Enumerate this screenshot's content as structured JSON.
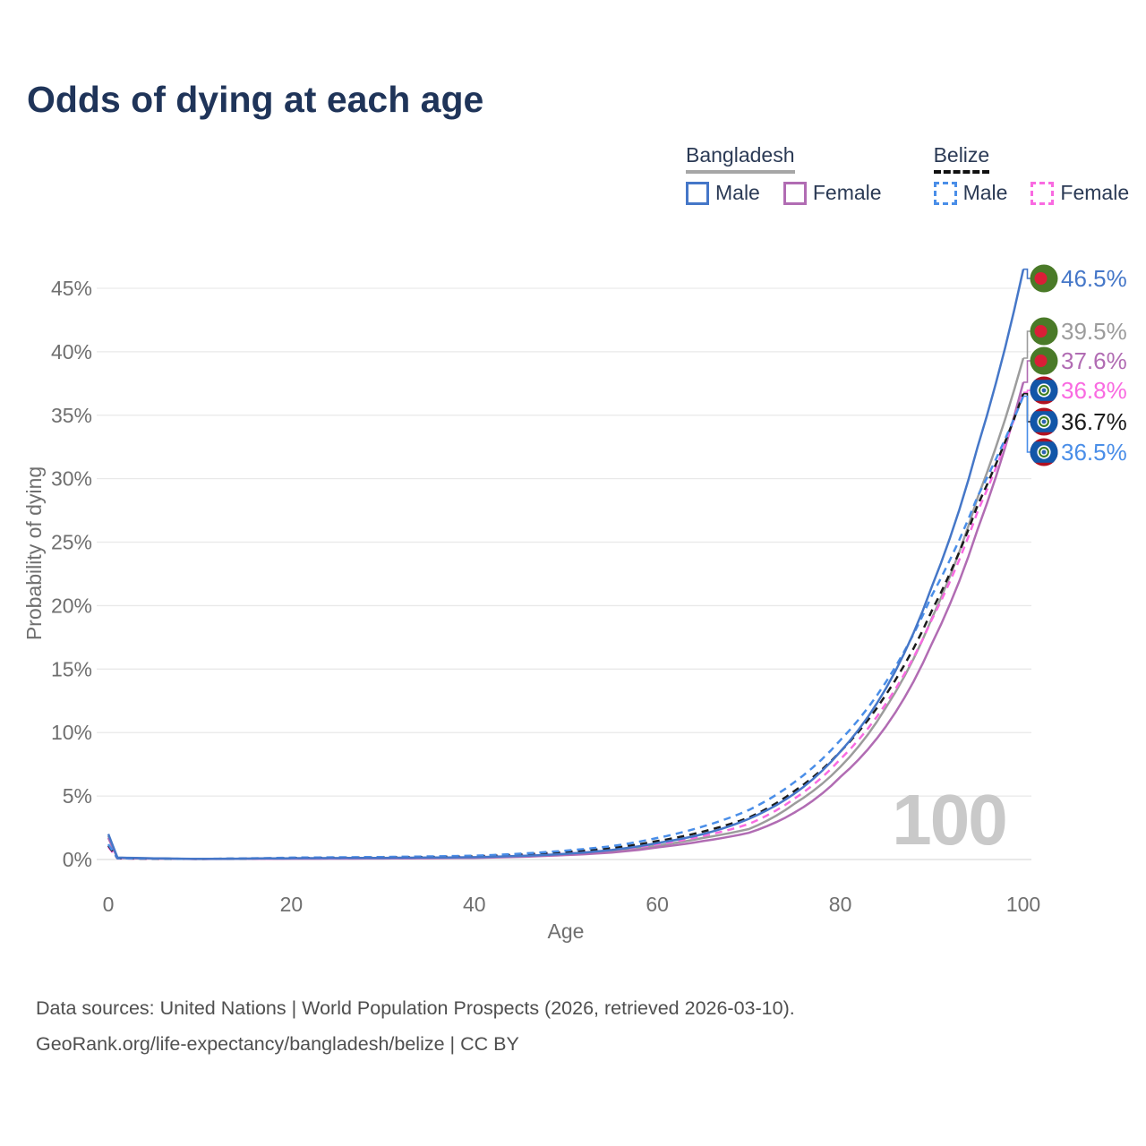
{
  "page": {
    "title": "Odds of dying at each age"
  },
  "legend": {
    "groups": [
      {
        "label": "Bangladesh",
        "underline_style": "solid",
        "underline_color": "#a6a6a6",
        "items": [
          {
            "label": "Male",
            "color": "#4577c8",
            "dashed": false
          },
          {
            "label": "Female",
            "color": "#b16cb3",
            "dashed": false
          }
        ]
      },
      {
        "label": "Belize",
        "underline_style": "dashed",
        "underline_color": "#111111",
        "items": [
          {
            "label": "Male",
            "color": "#4a8ee8",
            "dashed": true
          },
          {
            "label": "Female",
            "color": "#f96ae1",
            "dashed": true
          }
        ]
      }
    ]
  },
  "chart_data": {
    "type": "line",
    "title": "Odds of dying at each age",
    "xlabel": "Age",
    "ylabel": "Probability of dying",
    "x_ticks": [
      0,
      20,
      40,
      60,
      80,
      100
    ],
    "y_ticks_percent": [
      0,
      5,
      10,
      15,
      20,
      25,
      30,
      35,
      40,
      45
    ],
    "xlim": [
      0,
      100
    ],
    "ylim_percent": [
      0,
      47
    ],
    "grid": "horizontal",
    "legend_position": "top-right",
    "age_indicator": "100",
    "ages": [
      0,
      1,
      10,
      20,
      30,
      40,
      50,
      55,
      60,
      65,
      70,
      75,
      80,
      85,
      90,
      95,
      100
    ],
    "series": [
      {
        "name": "Bangladesh Total",
        "country": "Bangladesh",
        "sex": "Total",
        "color": "#9c9c9c",
        "dashed": false,
        "flag": "bangladesh",
        "end_label": "39.5%",
        "end_value_percent": 39.5,
        "values_percent": [
          1.85,
          0.14,
          0.045,
          0.08,
          0.1,
          0.16,
          0.4,
          0.65,
          1.1,
          1.7,
          2.4,
          4.4,
          7.3,
          12.0,
          19.0,
          28.5,
          39.5
        ]
      },
      {
        "name": "Bangladesh Female",
        "country": "Bangladesh",
        "sex": "Female",
        "color": "#b16cb3",
        "dashed": false,
        "flag": "bangladesh",
        "end_label": "37.6%",
        "end_value_percent": 37.6,
        "values_percent": [
          1.7,
          0.12,
          0.04,
          0.06,
          0.08,
          0.13,
          0.35,
          0.55,
          0.95,
          1.45,
          2.1,
          3.7,
          6.5,
          10.5,
          17.0,
          26.0,
          37.6
        ]
      },
      {
        "name": "Belize Female",
        "country": "Belize",
        "sex": "Female",
        "color": "#f96ae1",
        "dashed": true,
        "flag": "belize",
        "end_label": "36.8%",
        "end_value_percent": 36.8,
        "values_percent": [
          1.0,
          0.08,
          0.04,
          0.09,
          0.12,
          0.2,
          0.5,
          0.75,
          1.2,
          1.85,
          2.8,
          4.8,
          7.9,
          12.3,
          18.9,
          27.4,
          36.8
        ]
      },
      {
        "name": "Belize Total",
        "country": "Belize",
        "sex": "Total",
        "color": "#1b1b1b",
        "dashed": true,
        "flag": "belize",
        "end_label": "36.7%",
        "end_value_percent": 36.7,
        "values_percent": [
          1.1,
          0.09,
          0.045,
          0.12,
          0.16,
          0.25,
          0.6,
          0.9,
          1.45,
          2.2,
          3.3,
          5.4,
          8.5,
          13.0,
          19.6,
          27.9,
          36.7
        ]
      },
      {
        "name": "Belize Male",
        "country": "Belize",
        "sex": "Male",
        "color": "#4a8ee8",
        "dashed": true,
        "flag": "belize",
        "end_label": "36.5%",
        "end_value_percent": 36.5,
        "values_percent": [
          1.2,
          0.1,
          0.05,
          0.15,
          0.2,
          0.3,
          0.7,
          1.05,
          1.7,
          2.6,
          3.9,
          6.1,
          9.4,
          14.0,
          20.8,
          28.6,
          36.5
        ]
      },
      {
        "name": "Bangladesh Male",
        "country": "Bangladesh",
        "sex": "Male",
        "color": "#4577c8",
        "dashed": false,
        "flag": "bangladesh",
        "end_label": "46.5%",
        "end_value_percent": 46.5,
        "values_percent": [
          2.0,
          0.15,
          0.05,
          0.1,
          0.13,
          0.18,
          0.45,
          0.75,
          1.3,
          2.0,
          3.2,
          5.2,
          8.5,
          13.5,
          21.5,
          32.5,
          46.5
        ]
      }
    ]
  },
  "flags": {
    "bangladesh": {
      "field": "#4a7a28",
      "circle": "#da1e37"
    },
    "belize": {
      "stripe": "#b01020",
      "field": "#1256a8",
      "disc": "#ffffff",
      "ring": "#3f7d1f",
      "core": "#2a63b0"
    }
  },
  "colors": {
    "title": "#1f3459",
    "axis_text": "#6f6f6f",
    "grid": "#e9e9e9",
    "zero_line": "#dcdcdc",
    "watermark": "#c9c9c9",
    "source_text": "#4f4f4f"
  },
  "source": {
    "line1": "Data sources: United Nations | World Population Prospects (2026, retrieved 2026-03-10).",
    "line2": "GeoRank.org/life-expectancy/bangladesh/belize | CC BY"
  }
}
